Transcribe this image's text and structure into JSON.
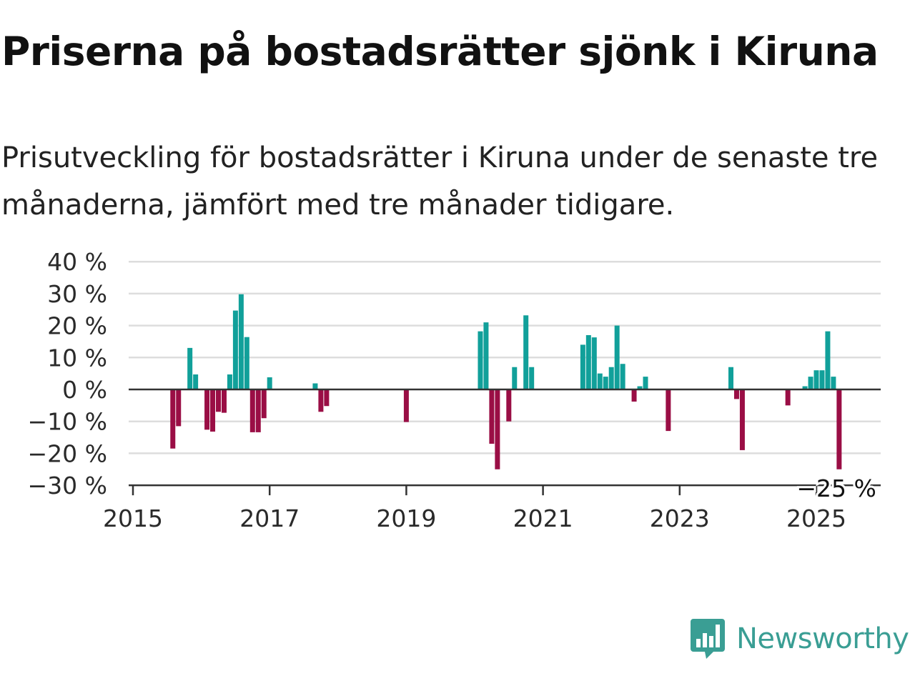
{
  "chart_data": {
    "type": "bar",
    "title": "Priserna på bostadsrätter sjönk i Kiruna",
    "subtitle": "Prisutveckling för bostadsrätter i Kiruna under de senaste tre månaderna, jämfört med tre månader tidigare.",
    "xlabel": "",
    "ylabel": "",
    "ylim": [
      -30,
      40
    ],
    "yticks": [
      -30,
      -20,
      -10,
      0,
      10,
      20,
      30,
      40
    ],
    "ytick_labels": [
      "−30 %",
      "−20 %",
      "−10 %",
      "0 %",
      "10 %",
      "20 %",
      "30 %",
      "40 %"
    ],
    "xlim": [
      "2015-01",
      "2025-12"
    ],
    "xticks": [
      "2015",
      "2017",
      "2019",
      "2021",
      "2023",
      "2025"
    ],
    "grid": true,
    "colors": {
      "positive": "#11a09a",
      "negative": "#9a0e45",
      "grid": "#dddddd",
      "axis": "#333333"
    },
    "x": [
      "2015-08",
      "2015-09",
      "2015-11",
      "2015-12",
      "2016-02",
      "2016-03",
      "2016-04",
      "2016-05",
      "2016-06",
      "2016-07",
      "2016-08",
      "2016-09",
      "2016-10",
      "2016-11",
      "2016-12",
      "2017-01",
      "2017-09",
      "2017-10",
      "2017-11",
      "2019-01",
      "2020-02",
      "2020-03",
      "2020-04",
      "2020-05",
      "2020-07",
      "2020-08",
      "2020-10",
      "2020-11",
      "2021-08",
      "2021-09",
      "2021-10",
      "2021-11",
      "2021-12",
      "2022-01",
      "2022-02",
      "2022-03",
      "2022-05",
      "2022-06",
      "2022-07",
      "2022-11",
      "2023-10",
      "2023-11",
      "2023-12",
      "2024-08",
      "2024-11",
      "2024-12",
      "2025-01",
      "2025-02",
      "2025-03",
      "2025-04",
      "2025-05"
    ],
    "values": [
      -18.5,
      -11.5,
      13,
      4.7,
      -12.6,
      -13.2,
      -7,
      -7.3,
      4.7,
      24.7,
      29.8,
      16.4,
      -13.4,
      -13.4,
      -9,
      3.8,
      1.9,
      -7,
      -5.2,
      -10.2,
      18.2,
      21,
      -17,
      -25,
      -10,
      7,
      23.2,
      7,
      14,
      17,
      16.3,
      5,
      4,
      7,
      20,
      8,
      -3.8,
      1,
      4,
      -13,
      7,
      -3,
      -19,
      -5,
      1,
      4,
      6,
      6,
      18.2,
      4,
      -25
    ],
    "annotation": {
      "x": "2025-05",
      "text": "−25 %"
    }
  },
  "brand": {
    "name": "Newsworthy",
    "color": "#3a9e94",
    "icon": "bar-chart-speech-bubble-icon"
  }
}
